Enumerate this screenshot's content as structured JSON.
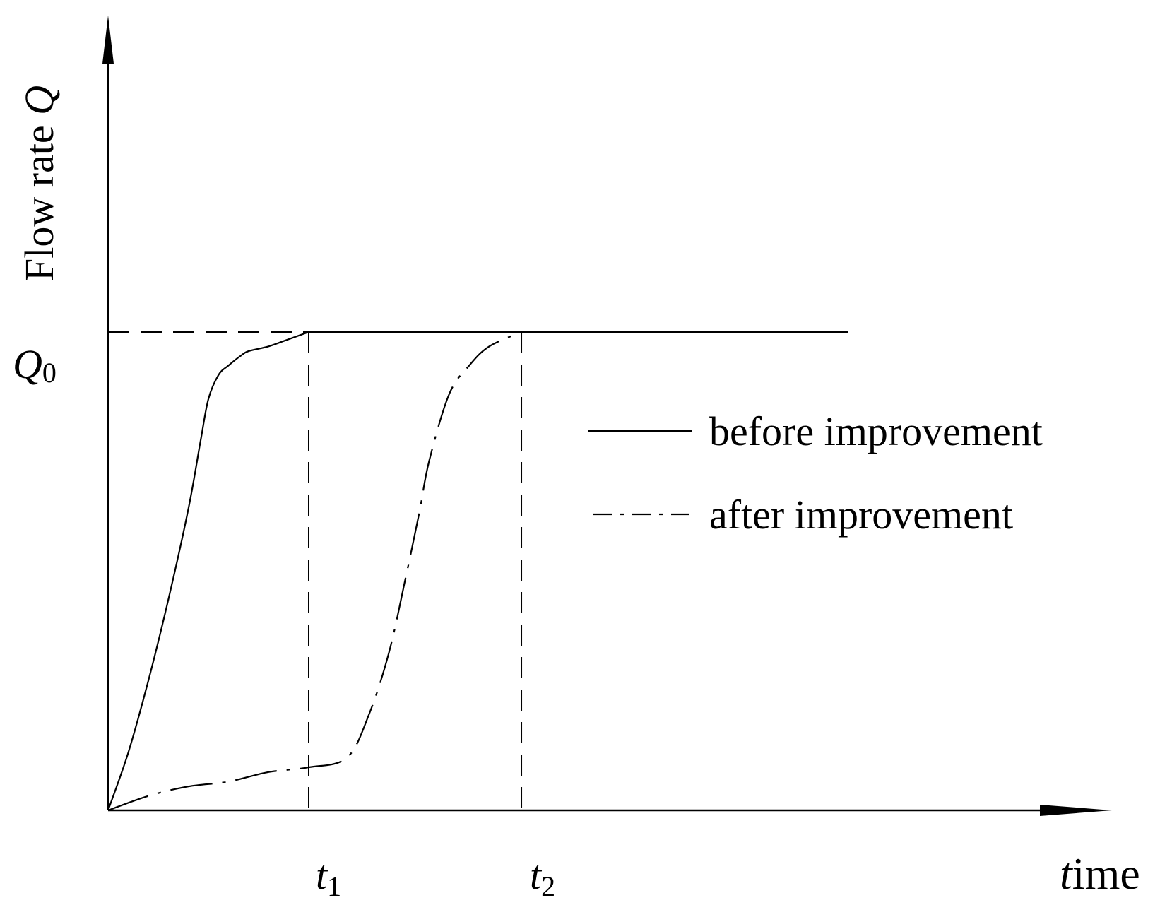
{
  "chart_data": {
    "type": "line",
    "xlabel": {
      "italic": "t",
      "rest": "ime"
    },
    "ylabel": {
      "text": "Flow rate ",
      "italic": "Q"
    },
    "x_ticks": [
      {
        "id": "t1",
        "italic": "t",
        "sub": "1",
        "x": 1.0
      },
      {
        "id": "t2",
        "italic": "t",
        "sub": "2",
        "x": 2.06
      }
    ],
    "y_ticks": [
      {
        "id": "Q0",
        "italic": "Q",
        "sub": "0",
        "y": 1.0
      }
    ],
    "xlim": [
      0,
      4.05
    ],
    "ylim": [
      0,
      1.6
    ],
    "grid": false,
    "legend_position": "right",
    "series": [
      {
        "name": "before improvement",
        "line_style": "solid",
        "x": [
          0,
          0.1,
          0.2,
          0.3,
          0.4,
          0.46,
          0.5,
          0.55,
          0.6,
          0.66,
          0.7,
          0.8,
          0.9,
          1.0
        ],
        "y": [
          0,
          0.12,
          0.27,
          0.44,
          0.63,
          0.77,
          0.86,
          0.91,
          0.93,
          0.95,
          0.96,
          0.97,
          0.985,
          1.0
        ]
      },
      {
        "name": "after improvement",
        "line_style": "dashdot",
        "x": [
          0,
          0.2,
          0.4,
          0.6,
          0.8,
          1.0,
          1.19,
          1.3,
          1.4,
          1.48,
          1.55,
          1.6,
          1.7,
          1.8,
          1.9,
          2.06
        ],
        "y": [
          0,
          0.03,
          0.05,
          0.06,
          0.08,
          0.09,
          0.11,
          0.2,
          0.33,
          0.48,
          0.62,
          0.73,
          0.87,
          0.93,
          0.97,
          1.0
        ]
      }
    ],
    "reference_lines": {
      "q0_level": 1.0,
      "t1": 1.0,
      "t2": 2.06,
      "q0_extends_to_x": 3.69
    }
  }
}
